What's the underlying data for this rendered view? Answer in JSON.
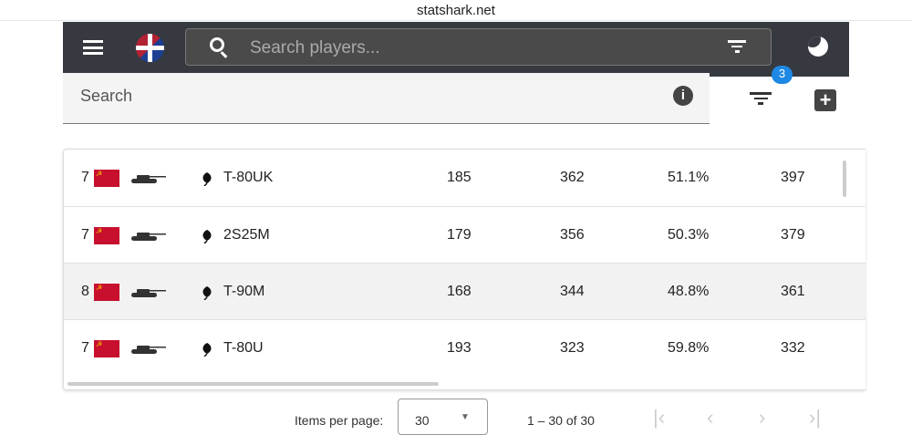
{
  "browser": {
    "url": "statshark.net"
  },
  "header": {
    "search_placeholder": "Search players..."
  },
  "search": {
    "label": "Search"
  },
  "filter": {
    "badge_count": "3"
  },
  "colors": {
    "header_bg": "#363a40",
    "badge": "#1e88e5",
    "ussr_flag": "#c8102e"
  },
  "rows": [
    {
      "tier": "7",
      "nation": "USSR",
      "name": "T-80UK",
      "c1": "185",
      "c2": "362",
      "c3": "51.1%",
      "c4": "397"
    },
    {
      "tier": "7",
      "nation": "USSR",
      "name": "2S25M",
      "c1": "179",
      "c2": "356",
      "c3": "50.3%",
      "c4": "379"
    },
    {
      "tier": "8",
      "nation": "USSR",
      "name": "T-90M",
      "c1": "168",
      "c2": "344",
      "c3": "48.8%",
      "c4": "361"
    },
    {
      "tier": "7",
      "nation": "USSR",
      "name": "T-80U",
      "c1": "193",
      "c2": "323",
      "c3": "59.8%",
      "c4": "332"
    }
  ],
  "paginator": {
    "items_label": "Items per page:",
    "page_size": "30",
    "range": "1 – 30 of 30"
  }
}
